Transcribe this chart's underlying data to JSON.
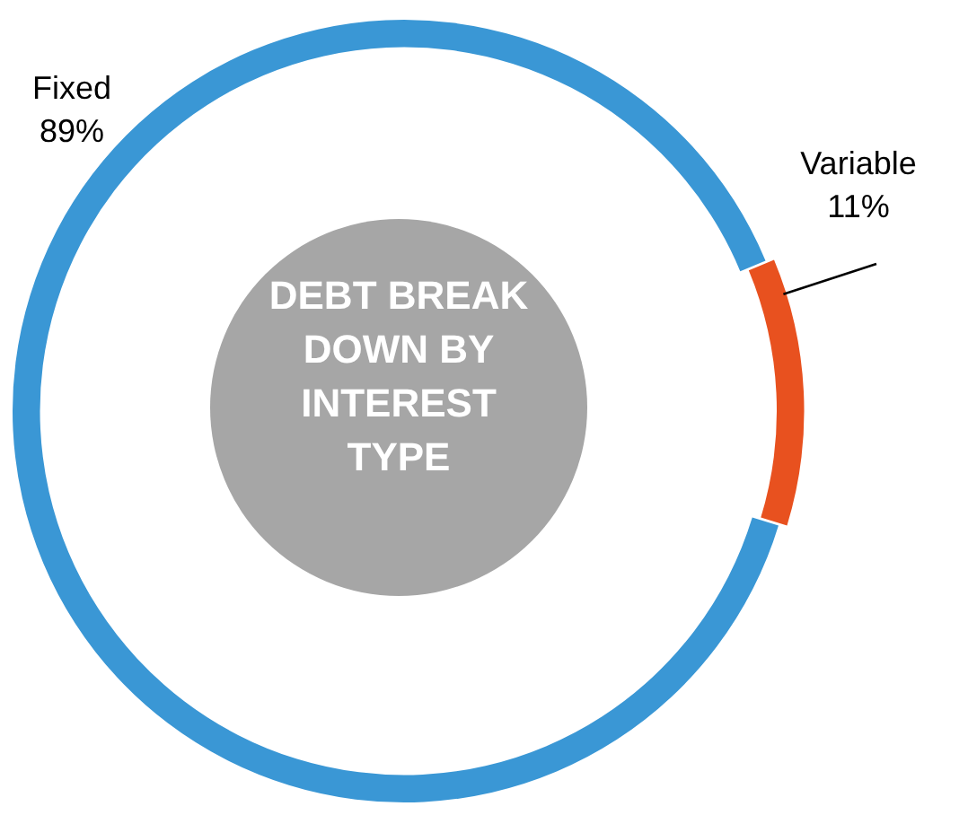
{
  "chart_data": {
    "type": "donut",
    "title": "DEBT BREAK DOWN BY INTEREST TYPE",
    "categories": [
      "Fixed",
      "Variable"
    ],
    "values": [
      89,
      11
    ],
    "colors": [
      "#3a97d5",
      "#e8511f"
    ],
    "value_labels": [
      "89%",
      "11%"
    ],
    "legend": false
  }
}
